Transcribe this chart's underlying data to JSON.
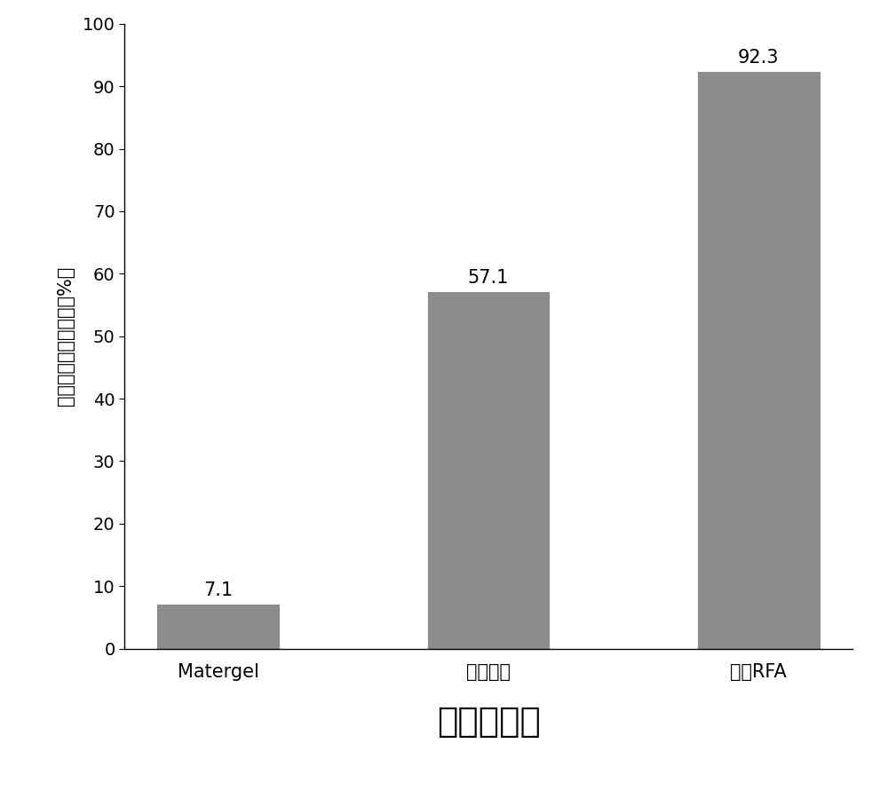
{
  "categories": [
    "Matergel",
    "生理盐水",
    "单純RFA"
  ],
  "values": [
    7.1,
    57.1,
    92.3
  ],
  "bar_color": "#8c8c8c",
  "bar_hatch": ".....",
  "ylabel": "周围脏器损伤发生率（%）",
  "xlabel": "不同治疗组",
  "ylim": [
    0,
    100
  ],
  "yticks": [
    0,
    10,
    20,
    30,
    40,
    50,
    60,
    70,
    80,
    90,
    100
  ],
  "value_fontsize": 15,
  "xlabel_fontsize": 28,
  "ylabel_fontsize": 15,
  "tick_fontsize": 14,
  "xtick_fontsize": 15,
  "background_color": "#ffffff",
  "bar_width": 0.45,
  "value_labels": [
    "7.1",
    "57.1",
    "92.3"
  ]
}
